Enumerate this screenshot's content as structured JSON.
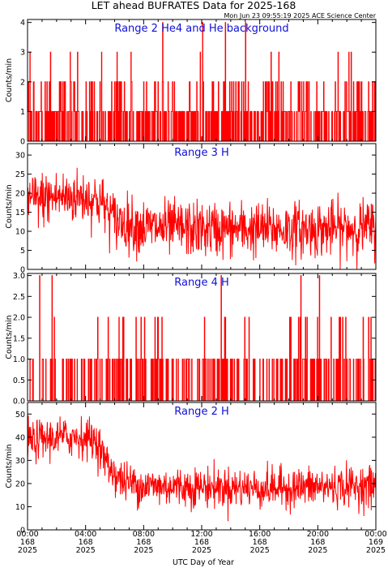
{
  "title": "LET ahead BUFRATES Data for 2025-168",
  "timestamp": "Mon Jun 23 09:55:19 2025 ACE Science Center",
  "colors": {
    "trace": "#ff0000",
    "panel_title": "#1010d8",
    "axes": "#000000"
  },
  "x_axis": {
    "label": "UTC Day of Year",
    "ticks": [
      {
        "time": "00:00",
        "day": "168",
        "year": "2025"
      },
      {
        "time": "04:00",
        "day": "168",
        "year": "2025"
      },
      {
        "time": "08:00",
        "day": "168",
        "year": "2025"
      },
      {
        "time": "12:00",
        "day": "168",
        "year": "2025"
      },
      {
        "time": "16:00",
        "day": "168",
        "year": "2025"
      },
      {
        "time": "20:00",
        "day": "168",
        "year": "2025"
      },
      {
        "time": "00:00",
        "day": "169",
        "year": "2025"
      }
    ]
  },
  "chart_data": [
    {
      "type": "line",
      "title": "Range 2 He4 and He background",
      "ylabel": "Counts/min",
      "ylim": [
        0,
        4.1
      ],
      "yticks": [
        "0",
        "1",
        "2",
        "3",
        "4"
      ],
      "yticks_values": [
        0,
        1,
        2,
        3,
        4
      ],
      "x_range_hours": [
        0,
        24
      ],
      "description_values": "discrete counts mostly 0-2 per minute with occasional 3-4 spikes"
    },
    {
      "type": "line",
      "title": "Range 3 H",
      "ylabel": "Counts/min",
      "ylim": [
        0,
        33
      ],
      "yticks": [
        "0",
        "5",
        "10",
        "15",
        "20",
        "25",
        "30"
      ],
      "yticks_values": [
        0,
        5,
        10,
        15,
        20,
        25,
        30
      ],
      "x_range_hours": [
        0,
        24
      ],
      "trend_hours": [
        0,
        2,
        4,
        5,
        6,
        8,
        12,
        16,
        20,
        24
      ],
      "trend_values": [
        18,
        19,
        19,
        18,
        13,
        11,
        10.5,
        10.5,
        10.5,
        11
      ]
    },
    {
      "type": "line",
      "title": "Range 4 H",
      "ylabel": "Counts/min",
      "ylim": [
        0,
        3.05
      ],
      "yticks": [
        "0.0",
        "0.5",
        "1.0",
        "1.5",
        "2.0",
        "2.5",
        "3.0"
      ],
      "yticks_values": [
        0,
        0.5,
        1,
        1.5,
        2,
        2.5,
        3
      ],
      "x_range_hours": [
        0,
        24
      ],
      "description_values": "discrete counts mostly 0-1 per minute with occasional 2-3 spikes"
    },
    {
      "type": "line",
      "title": "Range 2 H",
      "ylabel": "Counts/min",
      "ylim": [
        0,
        55
      ],
      "yticks": [
        "0",
        "10",
        "20",
        "30",
        "40",
        "50"
      ],
      "yticks_values": [
        0,
        10,
        20,
        30,
        40,
        50
      ],
      "x_range_hours": [
        0,
        24
      ],
      "trend_hours": [
        0,
        2,
        4,
        4.8,
        5.5,
        6.5,
        8,
        12,
        16,
        20,
        24
      ],
      "trend_values": [
        38,
        40,
        40,
        38,
        28,
        21,
        19,
        18.5,
        18,
        18.5,
        19
      ]
    }
  ]
}
